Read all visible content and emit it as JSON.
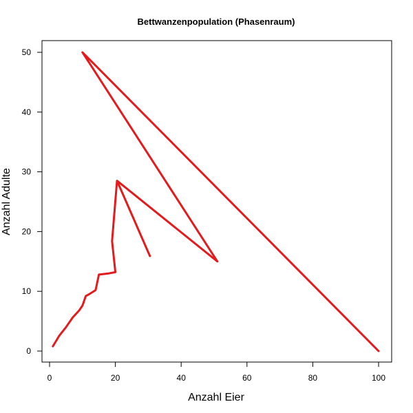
{
  "chart_data": {
    "type": "line",
    "title": "Bettwanzenpopulation (Phasenraum)",
    "xlabel": "Anzahl Eier",
    "ylabel": "Anzahl Adulte",
    "xlim": [
      0,
      100
    ],
    "ylim": [
      0,
      50
    ],
    "xticks": [
      0,
      20,
      40,
      60,
      80,
      100
    ],
    "yticks": [
      0,
      10,
      20,
      30,
      40,
      50
    ],
    "grid": false,
    "line_color": "#e41a1c",
    "series": [
      {
        "x": [
          1,
          3,
          5,
          7,
          9,
          10,
          11,
          12,
          14,
          15,
          18,
          20,
          19,
          20.5,
          30.5,
          20.5,
          51,
          10,
          100
        ],
        "y": [
          0.8,
          2.6,
          4.0,
          5.6,
          6.8,
          7.6,
          9.2,
          9.5,
          10.2,
          12.8,
          13.0,
          13.2,
          18.4,
          28.5,
          15.9,
          28.5,
          15.0,
          50,
          0
        ]
      }
    ]
  }
}
